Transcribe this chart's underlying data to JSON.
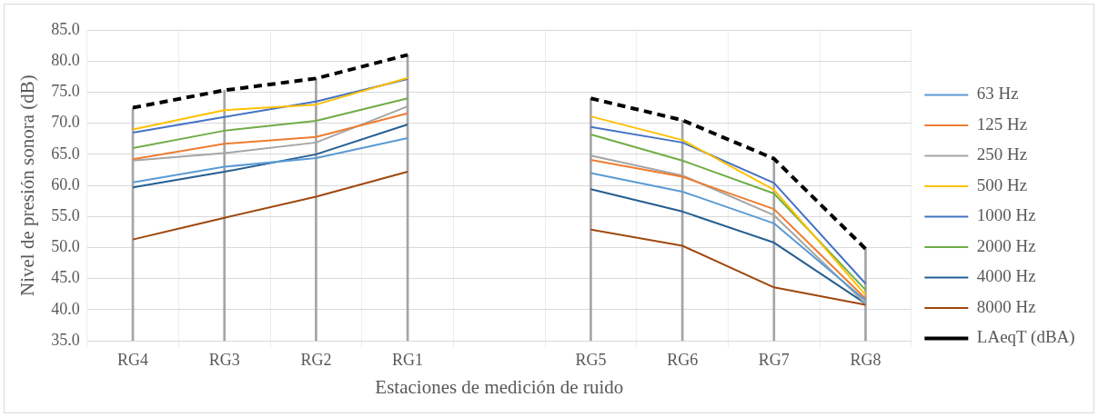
{
  "chart_data": {
    "type": "line",
    "xlabel": "Estaciones de medición de ruido",
    "ylabel": "Nivel de presión sonora (dB)",
    "categories": [
      "RG4",
      "RG3",
      "RG2",
      "RG1",
      null,
      "RG5",
      "RG6",
      "RG7",
      "RG8"
    ],
    "ylim": [
      35,
      85
    ],
    "yticks": [
      {
        "value": 35,
        "label": "35.0"
      },
      {
        "value": 40,
        "label": "40.0"
      },
      {
        "value": 45,
        "label": "45.0"
      },
      {
        "value": 50,
        "label": "50.0"
      },
      {
        "value": 55,
        "label": "55.0"
      },
      {
        "value": 60,
        "label": "60.0"
      },
      {
        "value": 65,
        "label": "65.0"
      },
      {
        "value": 70,
        "label": "70.0"
      },
      {
        "value": 75,
        "label": "75.0"
      },
      {
        "value": 80,
        "label": "80.0"
      },
      {
        "value": 85,
        "label": "85.0"
      }
    ],
    "grid": true,
    "legend": "right",
    "marker": "none",
    "line_style": "solid",
    "series": [
      {
        "name": "63 Hz",
        "color": "#5b9bd5",
        "values": [
          60.5,
          63.0,
          64.4,
          67.6,
          null,
          62.0,
          59.0,
          53.9,
          41.5
        ]
      },
      {
        "name": "125 Hz",
        "color": "#ed7d31",
        "values": [
          64.2,
          66.7,
          67.8,
          71.6,
          null,
          64.1,
          61.4,
          56.2,
          41.8
        ]
      },
      {
        "name": "250 Hz",
        "color": "#a5a5a5",
        "values": [
          64.0,
          65.2,
          66.9,
          72.7,
          null,
          64.8,
          61.6,
          55.2,
          41.0
        ]
      },
      {
        "name": "500 Hz",
        "color": "#ffc000",
        "values": [
          69.0,
          72.1,
          73.0,
          77.3,
          null,
          71.1,
          67.3,
          59.3,
          42.4
        ]
      },
      {
        "name": "1000 Hz",
        "color": "#4472c4",
        "values": [
          68.5,
          71.0,
          73.5,
          77.1,
          null,
          69.4,
          66.9,
          60.4,
          44.2
        ]
      },
      {
        "name": "2000 Hz",
        "color": "#70ad47",
        "values": [
          66.0,
          68.8,
          70.4,
          74.0,
          null,
          68.2,
          64.0,
          58.7,
          43.2
        ]
      },
      {
        "name": "4000 Hz",
        "color": "#255e91",
        "values": [
          59.7,
          62.2,
          65.0,
          69.8,
          null,
          59.4,
          55.8,
          50.8,
          41.0
        ]
      },
      {
        "name": "8000 Hz",
        "color": "#9e480e",
        "values": [
          51.3,
          54.8,
          58.2,
          62.2,
          null,
          52.9,
          50.3,
          43.6,
          40.8
        ]
      },
      {
        "name": "LAeqT (dBA)",
        "color": "#000000",
        "line_style": "dashed",
        "values": [
          72.5,
          75.3,
          77.2,
          81.0,
          null,
          74.0,
          70.5,
          64.3,
          49.8
        ]
      },
      {
        "type": "bar",
        "color": "#a5a5a5",
        "values": [
          72.5,
          75.3,
          77.2,
          81.0,
          null,
          74.0,
          70.5,
          64.3,
          49.8
        ]
      }
    ]
  }
}
